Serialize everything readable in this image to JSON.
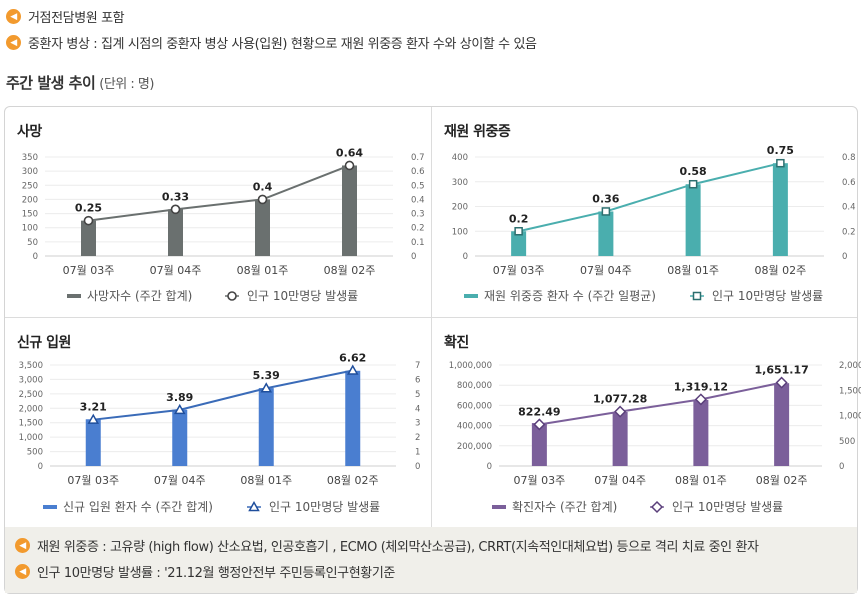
{
  "notes_top": [
    {
      "icon": "speaker-icon",
      "text": "거점전담병원 포함"
    },
    {
      "icon": "speaker-icon",
      "text": "중환자 병상 : 집계 시점의 중환자 병상 사용(입원) 현황으로 재원 위중증 환자 수와 상이할 수 있음"
    }
  ],
  "section": {
    "title": "주간 발생 추이",
    "unit": "(단위 : 명)"
  },
  "notes_bottom": [
    {
      "icon": "speaker-icon",
      "text": "재원 위중증 : 고유량 (high flow) 산소요법, 인공호흡기 , ECMO (체외막산소공급), CRRT(지속적인대체요법) 등으로 격리 치료 중인 환자"
    },
    {
      "icon": "speaker-icon",
      "text": "인구 10만명당 발생률 : '21.12월 행정안전부 주민등록인구현황기준"
    }
  ],
  "chart_data": [
    {
      "type": "bar",
      "title": "사망",
      "categories": [
        "07월 03주",
        "07월 04주",
        "08월 01주",
        "08월 02주"
      ],
      "series": [
        {
          "name": "사망자수 (주간 합계)",
          "kind": "bar",
          "axis": "left",
          "values": [
            125,
            165,
            200,
            320
          ]
        },
        {
          "name": "인구 10만명당 발생률",
          "kind": "line",
          "axis": "right",
          "values": [
            0.25,
            0.33,
            0.4,
            0.64
          ]
        }
      ],
      "data_labels": [
        "0.25",
        "0.33",
        "0.4",
        "0.64"
      ],
      "y_left": {
        "min": 0,
        "max": 350,
        "ticks": [
          "0",
          "50",
          "100",
          "150",
          "200",
          "250",
          "300",
          "350"
        ]
      },
      "y_right": {
        "min": 0,
        "max": 0.7,
        "ticks": [
          "0",
          "0.1",
          "0.2",
          "0.3",
          "0.4",
          "0.5",
          "0.6",
          "0.7"
        ]
      },
      "bar_color": "#6a706f",
      "line_color": "#6a706f",
      "marker": "circle"
    },
    {
      "type": "bar",
      "title": "재원 위중증",
      "categories": [
        "07월 03주",
        "07월 04주",
        "08월 01주",
        "08월 02주"
      ],
      "series": [
        {
          "name": "재원 위중증 환자 수 (주간 일평균)",
          "kind": "bar",
          "axis": "left",
          "values": [
            100,
            180,
            290,
            375
          ]
        },
        {
          "name": "인구 10만명당 발생률",
          "kind": "line",
          "axis": "right",
          "values": [
            0.2,
            0.36,
            0.58,
            0.75
          ]
        }
      ],
      "data_labels": [
        "0.2",
        "0.36",
        "0.58",
        "0.75"
      ],
      "y_left": {
        "min": 0,
        "max": 400,
        "ticks": [
          "0",
          "100",
          "200",
          "300",
          "400"
        ]
      },
      "y_right": {
        "min": 0,
        "max": 0.8,
        "ticks": [
          "0",
          "0.2",
          "0.4",
          "0.6",
          "0.8"
        ]
      },
      "bar_color": "#4aaeae",
      "line_color": "#4aaeae",
      "marker": "square"
    },
    {
      "type": "bar",
      "title": "신규 입원",
      "categories": [
        "07월 03주",
        "07월 04주",
        "08월 01주",
        "08월 02주"
      ],
      "series": [
        {
          "name": "신규 입원 환자 수 (주간 합계)",
          "kind": "bar",
          "axis": "left",
          "values": [
            1620,
            1950,
            2700,
            3300
          ]
        },
        {
          "name": "인구 10만명당 발생률",
          "kind": "line",
          "axis": "right",
          "values": [
            3.21,
            3.89,
            5.39,
            6.62
          ]
        }
      ],
      "data_labels": [
        "3.21",
        "3.89",
        "5.39",
        "6.62"
      ],
      "y_left": {
        "min": 0,
        "max": 3500,
        "ticks": [
          "0",
          "500",
          "1,000",
          "1,500",
          "2,000",
          "2,500",
          "3,000",
          "3,500"
        ]
      },
      "y_right": {
        "min": 0,
        "max": 7,
        "ticks": [
          "0",
          "1",
          "2",
          "3",
          "4",
          "5",
          "6",
          "7"
        ]
      },
      "bar_color": "#4a7ed0",
      "line_color": "#3a6bb8",
      "marker": "triangle"
    },
    {
      "type": "bar",
      "title": "확진",
      "categories": [
        "07월 03주",
        "07월 04주",
        "08월 01주",
        "08월 02주"
      ],
      "series": [
        {
          "name": "확진자수 (주간 합계)",
          "kind": "bar",
          "axis": "left",
          "values": [
            425000,
            535000,
            655000,
            820000
          ]
        },
        {
          "name": "인구 10만명당 발생률",
          "kind": "line",
          "axis": "right",
          "values": [
            822.49,
            1077.28,
            1319.12,
            1651.17
          ]
        }
      ],
      "data_labels": [
        "822.49",
        "1,077.28",
        "1,319.12",
        "1,651.17"
      ],
      "y_left": {
        "min": 0,
        "max": 1000000,
        "ticks": [
          "0",
          "200,000",
          "400,000",
          "600,000",
          "800,000",
          "1,000,000"
        ]
      },
      "y_right": {
        "min": 0,
        "max": 2000,
        "ticks": [
          "0",
          "500",
          "1,000",
          "1,500",
          "2,000"
        ]
      },
      "bar_color": "#7b5f9a",
      "line_color": "#7b5f9a",
      "marker": "diamond"
    }
  ]
}
